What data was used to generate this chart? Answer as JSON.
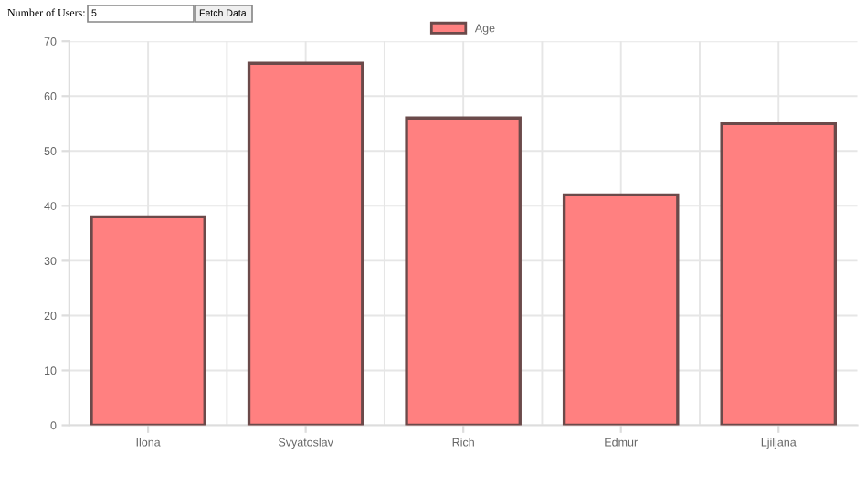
{
  "chart_data": {
    "type": "bar",
    "categories": [
      "Ilona",
      "Svyatoslav",
      "Rich",
      "Edmur",
      "Ljiljana"
    ],
    "series": [
      {
        "name": "Age",
        "color": "#ff8080",
        "values": [
          38,
          66,
          56,
          42,
          55
        ]
      }
    ],
    "ylim": [
      0,
      70
    ],
    "yticks": [
      0,
      10,
      20,
      30,
      40,
      50,
      60,
      70
    ],
    "grid": true,
    "legend": "top",
    "annotations": [
      "Number of Users:",
      "5",
      "Fetch Data"
    ]
  }
}
